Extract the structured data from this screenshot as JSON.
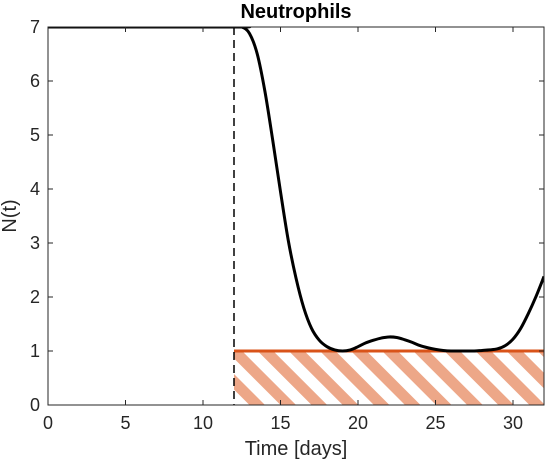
{
  "chart_data": {
    "type": "line",
    "title": "Neutrophils",
    "xlabel": "Time [days]",
    "ylabel": "N(t)",
    "xlim": [
      0,
      32
    ],
    "ylim": [
      0,
      7
    ],
    "xticks": [
      0,
      5,
      10,
      15,
      20,
      25,
      30
    ],
    "yticks": [
      0,
      1,
      2,
      3,
      4,
      5,
      6,
      7
    ],
    "grid": false,
    "colors": {
      "curve": "#000000",
      "threshold": "#d95319",
      "hatch": "#eda788",
      "axes": "#262626"
    },
    "series": [
      {
        "x": [
          0,
          12,
          12.5,
          13,
          13.5,
          14,
          14.5,
          15,
          15.5,
          16,
          16.5,
          17,
          17.5,
          18,
          18.5,
          19,
          19.5,
          20,
          20.5,
          21,
          21.5,
          22,
          22.5,
          23,
          23.5,
          24,
          24.5,
          25,
          25.5,
          26,
          26.5,
          27,
          27.5,
          28,
          28.5,
          29,
          29.5,
          30,
          30.5,
          31,
          31.5,
          32
        ],
        "y": [
          7,
          7,
          7.0,
          6.88,
          6.5,
          5.8,
          4.9,
          3.95,
          3.05,
          2.35,
          1.8,
          1.42,
          1.2,
          1.08,
          1.02,
          1.0,
          1.02,
          1.08,
          1.15,
          1.2,
          1.24,
          1.26,
          1.25,
          1.21,
          1.16,
          1.1,
          1.06,
          1.03,
          1.01,
          1.0,
          1.0,
          1.0,
          1.0,
          1.01,
          1.02,
          1.04,
          1.1,
          1.22,
          1.42,
          1.7,
          2.02,
          2.38
        ]
      }
    ],
    "annotations": {
      "vertical_line_x": 12,
      "threshold_y": 1,
      "shaded_region": {
        "x": [
          12,
          32
        ],
        "y": [
          0,
          1
        ]
      }
    }
  }
}
